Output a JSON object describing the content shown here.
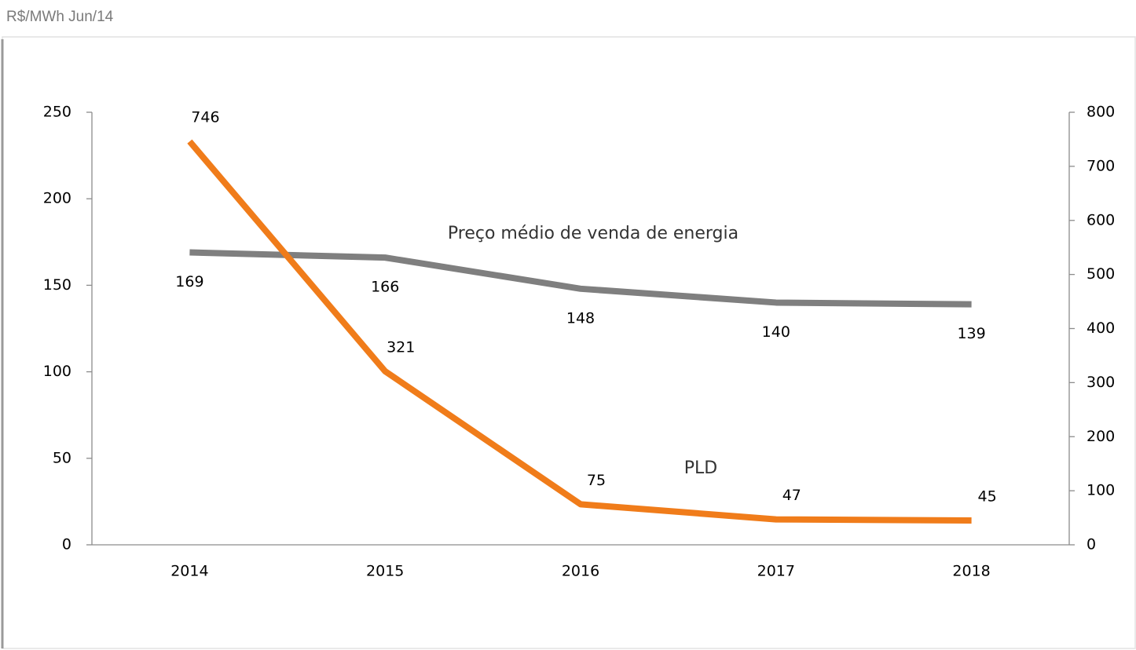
{
  "chart_data": {
    "type": "line",
    "title": "R$/MWh Jun/14",
    "categories": [
      "2014",
      "2015",
      "2016",
      "2017",
      "2018"
    ],
    "series": [
      {
        "name": "Preço médio de venda de energia",
        "color": "#7f7f7f",
        "values": [
          169,
          166,
          148,
          140,
          139
        ]
      },
      {
        "name": "PLD",
        "color": "#f07c1a",
        "axis": "y2",
        "values": [
          746,
          321,
          75,
          47,
          45
        ]
      }
    ],
    "ylim": [
      0,
      250
    ],
    "yticks": [
      0,
      50,
      100,
      150,
      200,
      250
    ],
    "y2lim": [
      0,
      800
    ],
    "y2ticks": [
      0,
      100,
      200,
      300,
      400,
      500,
      600,
      700,
      800
    ],
    "grid": false
  }
}
